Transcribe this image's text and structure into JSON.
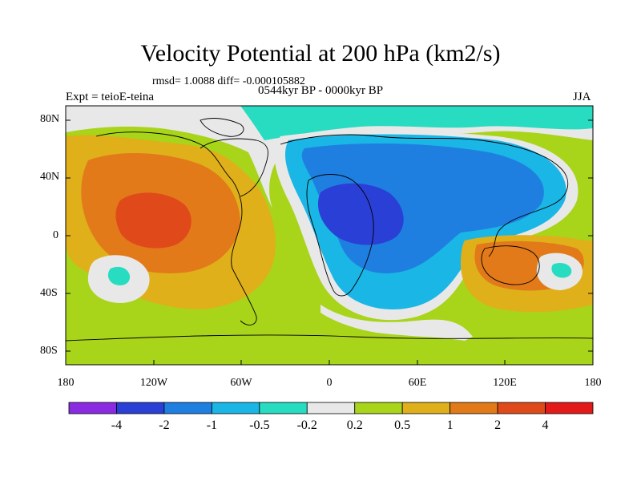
{
  "title": "Velocity Potential at 200 hPa (km2/s)",
  "stats_text": "rmsd= 1.0088 diff= -0.000105882",
  "experiment_text": "Expt = teioE-teina",
  "period_text": "0544kyr BP - 0000kyr BP",
  "season_text": "JJA",
  "lat_labels": [
    "80N",
    "40N",
    "0",
    "40S",
    "80S"
  ],
  "lon_labels": [
    "180",
    "120W",
    "60W",
    "0",
    "60E",
    "120E",
    "180"
  ],
  "colorbar": {
    "colors": [
      "#8a2be2",
      "#2a3fd6",
      "#1e7fe0",
      "#1ab6e6",
      "#27dcc0",
      "#e8e8e8",
      "#a8d41a",
      "#e0b01a",
      "#e27a1a",
      "#e04a1a",
      "#e21a1a"
    ],
    "labels": [
      "-4",
      "-2",
      "-1",
      "-0.5",
      "-0.2",
      "0.2",
      "0.5",
      "1",
      "2",
      "4"
    ]
  },
  "palette": {
    "deep_negative": "#2a3fd6",
    "negative": "#1e7fe0",
    "mild_negative": "#1ab6e6",
    "slight_negative": "#27dcc0",
    "neutral": "#e8e8e8",
    "slight_positive": "#a8d41a",
    "positive": "#e0b01a",
    "strong_positive": "#e27a1a",
    "stronger_positive": "#e04a1a"
  },
  "map": {
    "projection": "cylindrical equidistant",
    "lon_range": [
      -180,
      180
    ],
    "lat_range": [
      -90,
      90
    ]
  }
}
